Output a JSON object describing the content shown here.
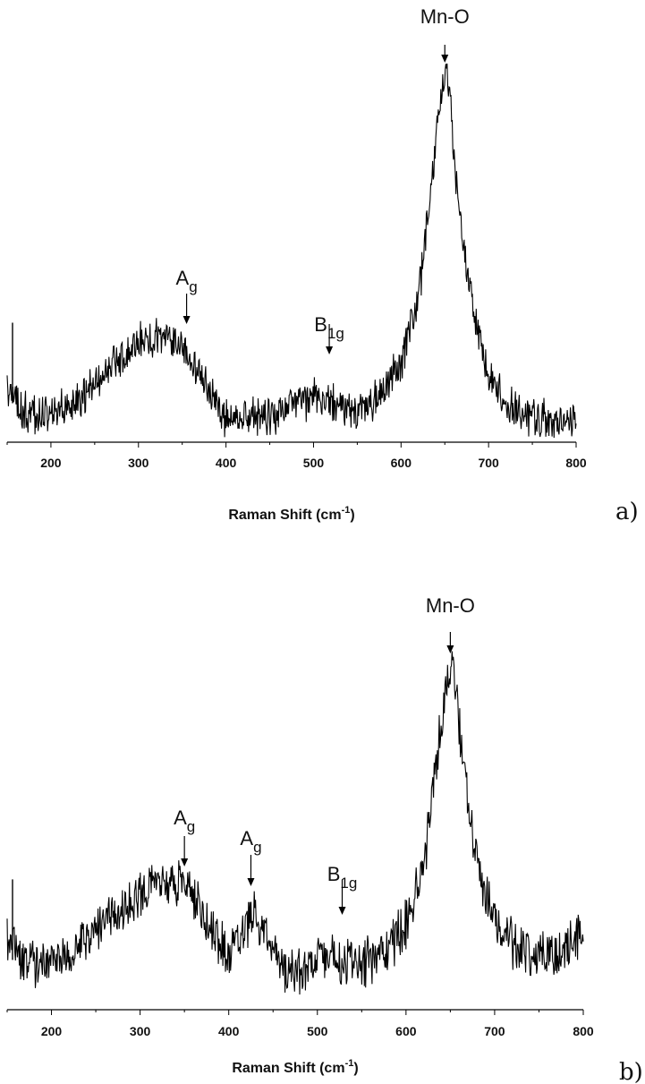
{
  "chart_data": [
    {
      "type": "line",
      "panel_label": "a)",
      "xlabel": "Raman Shift (cm",
      "xlabel_sup": "-1",
      "xlabel_end": ")",
      "xlim": [
        150,
        800
      ],
      "xticks": [
        200,
        300,
        400,
        500,
        600,
        700,
        800
      ],
      "xtick_labels": [
        "200",
        "300",
        "400",
        "500",
        "600",
        "700",
        "800"
      ],
      "series": [
        {
          "x": [
            150,
            175,
            200,
            225,
            250,
            275,
            300,
            325,
            350,
            370,
            390,
            400,
            425,
            450,
            475,
            500,
            520,
            540,
            560,
            580,
            600,
            620,
            635,
            645,
            650,
            655,
            665,
            680,
            700,
            725,
            750,
            775,
            800
          ],
          "y": [
            0.08,
            0.02,
            0.02,
            0.05,
            0.1,
            0.17,
            0.23,
            0.24,
            0.22,
            0.14,
            0.04,
            0.0,
            0.01,
            0.02,
            0.04,
            0.07,
            0.05,
            0.02,
            0.04,
            0.09,
            0.16,
            0.36,
            0.68,
            0.92,
            1.0,
            0.94,
            0.64,
            0.34,
            0.13,
            0.04,
            0.01,
            0.0,
            0.0
          ]
        }
      ],
      "annotations": [
        {
          "text": "A",
          "sub": "g",
          "x": 355
        },
        {
          "text": "B",
          "sub": "1g",
          "x": 518
        },
        {
          "text": "Mn-O",
          "sub": "",
          "x": 650
        }
      ]
    },
    {
      "type": "line",
      "panel_label": "b)",
      "xlabel": "Raman Shift (cm",
      "xlabel_sup": "-1",
      "xlabel_end": ")",
      "xlim": [
        150,
        800
      ],
      "xticks": [
        200,
        300,
        400,
        500,
        600,
        700,
        800
      ],
      "xtick_labels": [
        "200",
        "300",
        "400",
        "500",
        "600",
        "700",
        "800"
      ],
      "series": [
        {
          "x": [
            150,
            175,
            200,
            225,
            250,
            275,
            300,
            325,
            345,
            365,
            385,
            400,
            415,
            428,
            440,
            455,
            470,
            485,
            500,
            520,
            540,
            560,
            580,
            600,
            620,
            635,
            645,
            650,
            655,
            665,
            680,
            700,
            725,
            750,
            775,
            800
          ],
          "y": [
            0.1,
            0.04,
            0.03,
            0.08,
            0.14,
            0.2,
            0.26,
            0.3,
            0.3,
            0.24,
            0.12,
            0.06,
            0.14,
            0.2,
            0.15,
            0.04,
            0.0,
            0.02,
            0.05,
            0.06,
            0.04,
            0.05,
            0.09,
            0.16,
            0.36,
            0.68,
            0.92,
            1.0,
            0.94,
            0.66,
            0.36,
            0.17,
            0.09,
            0.06,
            0.08,
            0.13
          ]
        }
      ],
      "annotations": [
        {
          "text": "A",
          "sub": "g",
          "x": 350
        },
        {
          "text": "A",
          "sub": "g",
          "x": 425
        },
        {
          "text": "B",
          "sub": "1g",
          "x": 528
        },
        {
          "text": "Mn-O",
          "sub": "",
          "x": 650
        }
      ]
    }
  ]
}
